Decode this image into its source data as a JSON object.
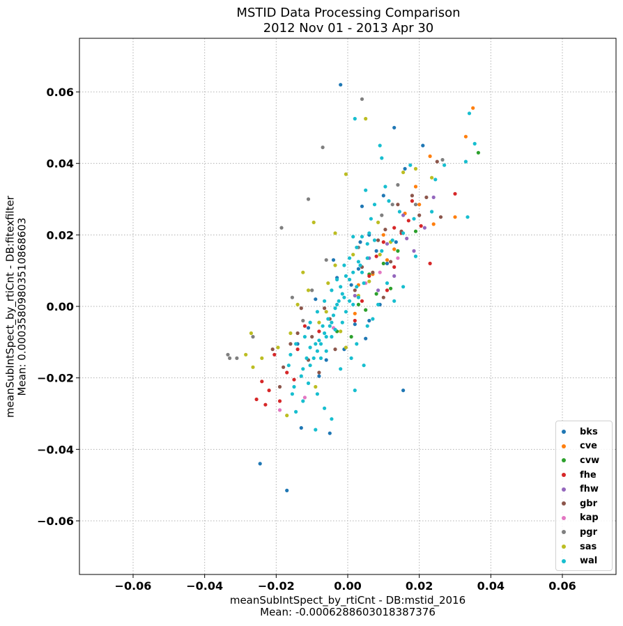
{
  "chart_data": {
    "type": "scatter",
    "title": "MSTID Data Processing Comparison",
    "subtitle": "2012 Nov 01 - 2013 Apr 30",
    "xlabel": "meanSubIntSpect_by_rtiCnt - DB:mstid_2016",
    "xlabel_mean": "Mean: -0.0006288603018387376",
    "ylabel": "meanSubIntSpect_by_rtiCnt - DB:fitexfilter",
    "ylabel_mean": "Mean: 0.000358098035108686​03",
    "xlim": [
      -0.075,
      0.075
    ],
    "ylim": [
      -0.075,
      0.075
    ],
    "xticks": [
      -0.06,
      -0.04,
      -0.02,
      0.0,
      0.02,
      0.04,
      0.06
    ],
    "yticks": [
      -0.06,
      -0.04,
      -0.02,
      0.0,
      0.02,
      0.04,
      0.06
    ],
    "xtick_labels": [
      "−0.06",
      "−0.04",
      "−0.02",
      "0.00",
      "0.02",
      "0.04",
      "0.06"
    ],
    "ytick_labels": [
      "−0.06",
      "−0.04",
      "−0.02",
      "0.00",
      "0.02",
      "0.04",
      "0.06"
    ],
    "grid": true,
    "legend_position": "lower-right",
    "series": [
      {
        "name": "bks",
        "color": "#1f77b4",
        "points": [
          [
            -0.002,
            0.062
          ],
          [
            -0.0245,
            -0.044
          ],
          [
            -0.017,
            -0.0515
          ],
          [
            0.013,
            0.05
          ],
          [
            0.021,
            0.045
          ],
          [
            0.0155,
            -0.0235
          ],
          [
            0.009,
            0.0005
          ],
          [
            0.004,
            0.028
          ],
          [
            0.006,
            0.02
          ],
          [
            -0.003,
            0.008
          ],
          [
            0.002,
            -0.005
          ],
          [
            -0.006,
            -0.015
          ],
          [
            -0.013,
            -0.034
          ],
          [
            -0.005,
            -0.0355
          ],
          [
            -0.004,
            0.013
          ],
          [
            0.011,
            0.012
          ],
          [
            -0.011,
            -0.006
          ],
          [
            0.0035,
            0.018
          ],
          [
            0.006,
            -0.004
          ],
          [
            -0.009,
            0.002
          ],
          [
            0.003,
            0.0105
          ],
          [
            0.008,
            0.0155
          ],
          [
            -0.001,
            -0.012
          ],
          [
            0.016,
            0.0385
          ],
          [
            0.01,
            0.031
          ],
          [
            -0.008,
            -0.0195
          ],
          [
            0.0135,
            0.018
          ],
          [
            0.001,
            0.006
          ],
          [
            -0.014,
            -0.0105
          ],
          [
            0.005,
            -0.009
          ]
        ]
      },
      {
        "name": "cve",
        "color": "#ff7f0e",
        "points": [
          [
            0.035,
            0.0555
          ],
          [
            0.033,
            0.0475
          ],
          [
            0.023,
            0.042
          ],
          [
            0.03,
            0.025
          ],
          [
            0.019,
            0.0335
          ],
          [
            0.024,
            0.023
          ],
          [
            0.011,
            0.013
          ],
          [
            0.016,
            0.026
          ],
          [
            0.007,
            0.009
          ],
          [
            0.013,
            0.016
          ],
          [
            0.003,
            0.006
          ],
          [
            0.01,
            0.02
          ],
          [
            0.02,
            0.0285
          ],
          [
            0.002,
            -0.002
          ]
        ]
      },
      {
        "name": "cvw",
        "color": "#2ca02c",
        "points": [
          [
            0.0365,
            0.043
          ],
          [
            0.006,
            0.009
          ],
          [
            0.01,
            0.012
          ],
          [
            0.012,
            0.005
          ],
          [
            0.003,
            0.0005
          ],
          [
            0.019,
            0.021
          ],
          [
            -0.003,
            -0.007
          ],
          [
            0.005,
            -0.001
          ],
          [
            0.014,
            0.0155
          ],
          [
            0.001,
            -0.0085
          ],
          [
            0.008,
            0.0035
          ]
        ]
      },
      {
        "name": "fhe",
        "color": "#d62728",
        "points": [
          [
            0.03,
            0.0315
          ],
          [
            0.023,
            0.012
          ],
          [
            0.018,
            0.0295
          ],
          [
            0.013,
            0.022
          ],
          [
            -0.022,
            -0.0235
          ],
          [
            -0.0255,
            -0.026
          ],
          [
            -0.024,
            -0.021
          ],
          [
            -0.019,
            -0.0265
          ],
          [
            0.015,
            0.0205
          ],
          [
            0.008,
            0.014
          ],
          [
            -0.017,
            -0.0185
          ],
          [
            -0.014,
            -0.012
          ],
          [
            0.011,
            0.0045
          ],
          [
            0.006,
            0.0085
          ],
          [
            0.002,
            -0.004
          ],
          [
            -0.012,
            -0.0055
          ],
          [
            0.017,
            0.024
          ],
          [
            0.01,
            0.018
          ],
          [
            -0.008,
            -0.007
          ],
          [
            -0.0205,
            -0.0135
          ],
          [
            0.004,
            0.0015
          ],
          [
            0.013,
            0.011
          ],
          [
            -0.015,
            -0.0205
          ],
          [
            0.0205,
            0.0225
          ],
          [
            -0.023,
            -0.0275
          ]
        ]
      },
      {
        "name": "fhw",
        "color": "#9467bd",
        "points": [
          [
            0.024,
            0.0305
          ],
          [
            0.0215,
            0.022
          ],
          [
            0.0155,
            0.0255
          ],
          [
            0.011,
            0.0175
          ],
          [
            0.006,
            0.0135
          ],
          [
            0.0185,
            0.0155
          ],
          [
            0.0085,
            0.0045
          ],
          [
            0.013,
            0.0085
          ],
          [
            0.002,
            0.003
          ],
          [
            0.0165,
            0.019
          ]
        ]
      },
      {
        "name": "gbr",
        "color": "#8c564b",
        "points": [
          [
            -0.013,
            -0.0005
          ],
          [
            -0.014,
            -0.0075
          ],
          [
            -0.018,
            -0.017
          ],
          [
            -0.021,
            -0.012
          ],
          [
            -0.016,
            -0.0105
          ],
          [
            -0.008,
            -0.0185
          ],
          [
            -0.005,
            -0.0035
          ],
          [
            0.002,
            0.0045
          ],
          [
            0.007,
            0.0095
          ],
          [
            0.012,
            0.0125
          ],
          [
            0.015,
            0.021
          ],
          [
            0.02,
            0.0255
          ],
          [
            0.025,
            0.0405
          ],
          [
            0.026,
            0.025
          ],
          [
            0.0085,
            0.0185
          ],
          [
            -0.011,
            -0.015
          ],
          [
            -0.0035,
            -0.012
          ],
          [
            0.01,
            0.0025
          ],
          [
            -0.019,
            -0.0225
          ],
          [
            0.004,
            0.011
          ],
          [
            -0.01,
            -0.0085
          ],
          [
            0.018,
            0.031
          ],
          [
            0.022,
            0.0305
          ],
          [
            0.014,
            0.0285
          ],
          [
            -0.0065,
            -0.0005
          ],
          [
            0.0105,
            0.0215
          ]
        ]
      },
      {
        "name": "kap",
        "color": "#e377c2",
        "points": [
          [
            -0.019,
            -0.029
          ],
          [
            -0.012,
            -0.0255
          ],
          [
            0.009,
            0.0095
          ],
          [
            -0.004,
            -0.006
          ],
          [
            0.014,
            0.0135
          ],
          [
            0.005,
            0.0065
          ]
        ]
      },
      {
        "name": "pgr",
        "color": "#7f7f7f",
        "points": [
          [
            -0.0335,
            -0.0135
          ],
          [
            -0.033,
            -0.0145
          ],
          [
            -0.031,
            -0.0145
          ],
          [
            -0.0265,
            -0.0085
          ],
          [
            -0.0185,
            0.022
          ],
          [
            -0.011,
            0.03
          ],
          [
            -0.007,
            0.0445
          ],
          [
            0.004,
            0.058
          ],
          [
            0.014,
            0.034
          ],
          [
            0.0265,
            0.041
          ],
          [
            0.0125,
            0.0285
          ],
          [
            0.019,
            0.0285
          ],
          [
            -0.01,
            0.0045
          ],
          [
            -0.0155,
            0.0025
          ],
          [
            -0.006,
            0.013
          ],
          [
            0.0095,
            0.0255
          ],
          [
            0.003,
            0.0165
          ],
          [
            -0.0125,
            -0.004
          ]
        ]
      },
      {
        "name": "sas",
        "color": "#bcbd22",
        "points": [
          [
            0.005,
            0.0525
          ],
          [
            -0.0125,
            0.0095
          ],
          [
            -0.0095,
            0.0235
          ],
          [
            -0.0005,
            0.037
          ],
          [
            0.0235,
            0.036
          ],
          [
            0.0155,
            0.0375
          ],
          [
            0.019,
            0.0385
          ],
          [
            -0.027,
            -0.0075
          ],
          [
            -0.0285,
            -0.0135
          ],
          [
            -0.024,
            -0.0145
          ],
          [
            -0.0265,
            -0.017
          ],
          [
            -0.017,
            -0.0305
          ],
          [
            -0.002,
            -0.007
          ],
          [
            0.003,
            0.003
          ],
          [
            -0.006,
            -0.0015
          ],
          [
            -0.011,
            0.0045
          ],
          [
            -0.014,
            0.0005
          ],
          [
            0.0015,
            0.0145
          ],
          [
            -0.0035,
            0.0115
          ],
          [
            0.006,
            0.007
          ],
          [
            0.009,
            0.0145
          ],
          [
            -0.008,
            -0.0045
          ],
          [
            -0.0035,
            0.0205
          ],
          [
            -0.016,
            -0.0075
          ],
          [
            0.0085,
            0.0235
          ],
          [
            -0.009,
            -0.0225
          ],
          [
            0.012,
            0.018
          ],
          [
            -0.0005,
            -0.0115
          ],
          [
            -0.0195,
            -0.0115
          ],
          [
            -0.0055,
            0.0065
          ]
        ]
      },
      {
        "name": "wal",
        "color": "#17becf",
        "points": [
          [
            0.002,
            0.0525
          ],
          [
            0.009,
            0.045
          ],
          [
            0.034,
            0.054
          ],
          [
            0.0355,
            0.0455
          ],
          [
            0.027,
            0.0395
          ],
          [
            0.033,
            0.0405
          ],
          [
            0.0245,
            0.0355
          ],
          [
            0.0335,
            0.025
          ],
          [
            0.0175,
            0.0395
          ],
          [
            0.0095,
            0.0415
          ],
          [
            0.005,
            0.0325
          ],
          [
            0.0145,
            0.0265
          ],
          [
            0.019,
            0.014
          ],
          [
            0.0155,
            0.0055
          ],
          [
            0.013,
            0.0015
          ],
          [
            0.011,
            0.0065
          ],
          [
            0.006,
            0.0205
          ],
          [
            0.003,
            0.0125
          ],
          [
            0.0005,
            0.0075
          ],
          [
            -0.0015,
            0.0035
          ],
          [
            -0.003,
            0.0005
          ],
          [
            -0.004,
            -0.0025
          ],
          [
            -0.005,
            -0.0055
          ],
          [
            -0.006,
            -0.0085
          ],
          [
            -0.0075,
            -0.0105
          ],
          [
            -0.0085,
            -0.0125
          ],
          [
            -0.0095,
            -0.0145
          ],
          [
            -0.0105,
            -0.0165
          ],
          [
            -0.0025,
            0.0015
          ],
          [
            -0.0035,
            -0.0005
          ],
          [
            -0.002,
            0.0055
          ],
          [
            0.0015,
            0.0095
          ],
          [
            0.0025,
            0.0055
          ],
          [
            0.0035,
            0.0115
          ],
          [
            0.004,
            0.0095
          ],
          [
            0.0055,
            0.0135
          ],
          [
            0.0005,
            0.0015
          ],
          [
            -0.0005,
            -0.0015
          ],
          [
            -0.001,
            0.0025
          ],
          [
            -0.0045,
            -0.0045
          ],
          [
            -0.0055,
            -0.0035
          ],
          [
            -0.0065,
            -0.0075
          ],
          [
            -0.007,
            -0.0055
          ],
          [
            -0.008,
            -0.0095
          ],
          [
            -0.009,
            -0.0105
          ],
          [
            -0.0105,
            -0.0115
          ],
          [
            -0.0115,
            -0.0145
          ],
          [
            -0.0125,
            -0.0175
          ],
          [
            -0.006,
            -0.0125
          ],
          [
            -0.0045,
            -0.0085
          ],
          [
            0.0015,
            0.0005
          ],
          [
            0.003,
            0.0025
          ],
          [
            0.0045,
            0.0065
          ],
          [
            -0.0015,
            -0.0045
          ],
          [
            -0.0035,
            -0.0065
          ],
          [
            -0.0075,
            -0.0145
          ],
          [
            -0.013,
            -0.0195
          ],
          [
            -0.015,
            -0.0225
          ],
          [
            -0.011,
            -0.0215
          ],
          [
            -0.0085,
            -0.0245
          ],
          [
            -0.0065,
            -0.0285
          ],
          [
            -0.0045,
            -0.0315
          ],
          [
            -0.0125,
            -0.0265
          ],
          [
            -0.0145,
            -0.0295
          ],
          [
            -0.0155,
            -0.0245
          ],
          [
            -0.009,
            -0.0345
          ],
          [
            0.002,
            -0.0235
          ],
          [
            0.0045,
            -0.0165
          ],
          [
            0.0055,
            -0.0055
          ],
          [
            0.007,
            -0.0035
          ],
          [
            0.0085,
            0.0005
          ],
          [
            0.0025,
            -0.0105
          ],
          [
            0.001,
            -0.0145
          ],
          [
            -0.002,
            -0.0175
          ],
          [
            0.0125,
            0.0185
          ],
          [
            0.0065,
            0.0245
          ],
          [
            0.0075,
            0.0285
          ],
          [
            0.0105,
            0.0335
          ],
          [
            0.0115,
            0.0295
          ],
          [
            0.0075,
            0.0185
          ],
          [
            0.0095,
            0.0155
          ],
          [
            0.0155,
            0.0205
          ],
          [
            0.0235,
            0.0265
          ],
          [
            0.0185,
            0.0245
          ],
          [
            -0.016,
            -0.0135
          ],
          [
            -0.0165,
            -0.0165
          ],
          [
            -0.0145,
            -0.0105
          ],
          [
            -0.012,
            -0.0085
          ],
          [
            -0.0105,
            -0.0045
          ],
          [
            -0.0085,
            -0.0015
          ],
          [
            -0.0065,
            0.0015
          ],
          [
            -0.0045,
            0.0045
          ],
          [
            -0.003,
            0.0075
          ],
          [
            -0.001,
            0.0115
          ],
          [
            0.0005,
            0.0135
          ],
          [
            0.0025,
            0.0165
          ],
          [
            0.004,
            0.0195
          ],
          [
            0.0055,
            0.0175
          ],
          [
            0.0015,
            0.0195
          ],
          [
            -0.0005,
            0.0085
          ]
        ]
      }
    ]
  }
}
